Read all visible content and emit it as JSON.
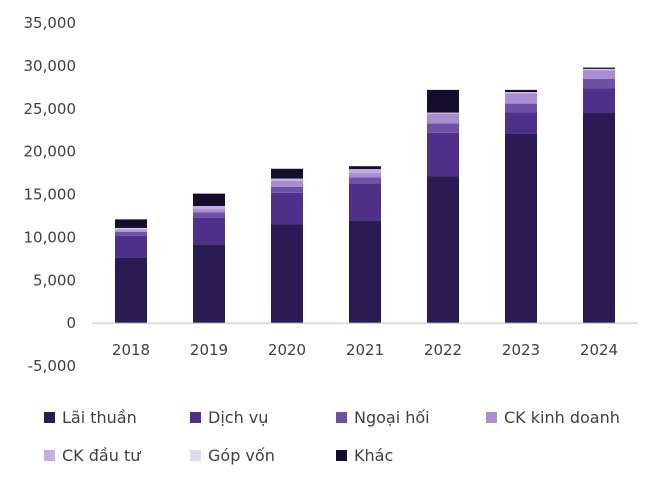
{
  "chart_data": {
    "type": "bar",
    "stacked": true,
    "categories": [
      "2018",
      "2019",
      "2020",
      "2021",
      "2022",
      "2023",
      "2024"
    ],
    "ylim": [
      -5000,
      35000
    ],
    "yticks": [
      -5000,
      0,
      5000,
      10000,
      15000,
      20000,
      25000,
      30000,
      35000
    ],
    "ytick_labels": [
      "-5,000",
      "0",
      "5,000",
      "10,000",
      "15,000",
      "20,000",
      "25,000",
      "30,000",
      "35,000"
    ],
    "grid": false,
    "legend_position": "bottom",
    "series": [
      {
        "name": "Lãi thuần",
        "color": "#2a1b52",
        "values": [
          7600,
          9200,
          11500,
          12000,
          17100,
          22100,
          24500
        ]
      },
      {
        "name": "Dịch vụ",
        "color": "#4e2f8a",
        "values": [
          2600,
          3100,
          3700,
          4300,
          5100,
          2500,
          2900
        ]
      },
      {
        "name": "Ngoại hối",
        "color": "#6c52a4",
        "values": [
          450,
          600,
          700,
          700,
          1100,
          1000,
          1100
        ]
      },
      {
        "name": "CK kinh doanh",
        "color": "#a88dd0",
        "values": [
          200,
          400,
          700,
          500,
          1100,
          1200,
          1000
        ]
      },
      {
        "name": "CK đầu tư",
        "color": "#c2aee6",
        "values": [
          200,
          300,
          200,
          400,
          100,
          100,
          100
        ]
      },
      {
        "name": "Góp vốn",
        "color": "#e2d8f4",
        "values": [
          50,
          50,
          50,
          50,
          50,
          50,
          50
        ]
      },
      {
        "name": "Khác",
        "color": "#140d2c",
        "values": [
          1000,
          1450,
          1150,
          350,
          2650,
          250,
          150
        ]
      }
    ]
  }
}
